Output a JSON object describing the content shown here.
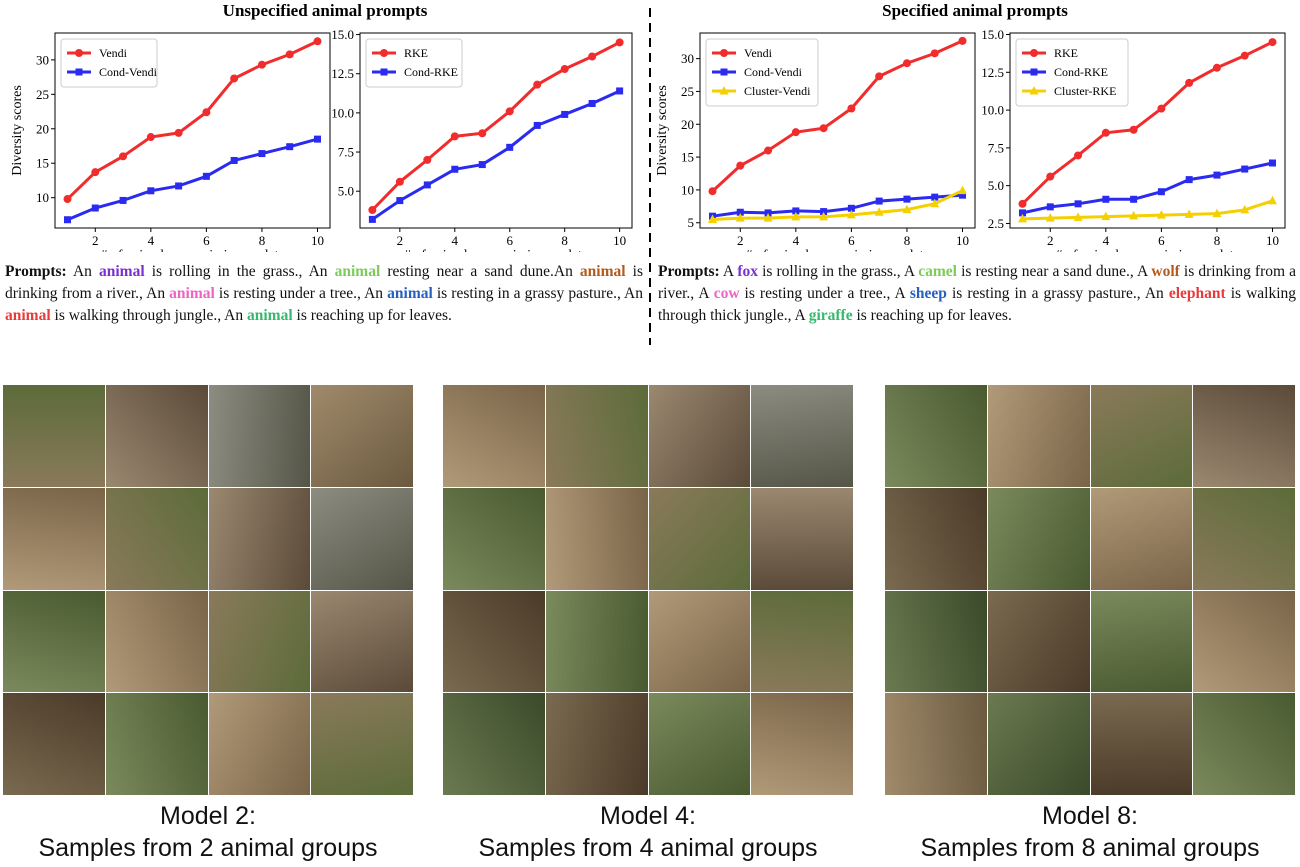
{
  "sections": [
    {
      "title": "Unspecified animal prompts"
    },
    {
      "title": "Specified animal prompts"
    }
  ],
  "chart_data": [
    {
      "type": "line",
      "x": [
        1,
        2,
        3,
        4,
        5,
        6,
        7,
        8,
        9,
        10
      ],
      "xlim": [
        0.55,
        10.45
      ],
      "xticks": [
        2,
        4,
        6,
        8,
        10
      ],
      "ylim": [
        5.6,
        33.9
      ],
      "yticks": [
        10,
        15,
        20,
        25,
        30
      ],
      "y_label": "Diversity scores",
      "x_label": "# of animal groups in image data",
      "series": [
        {
          "name": "Vendi",
          "color": "#f02c2c",
          "marker": "circle",
          "values": [
            9.8,
            13.7,
            16.0,
            18.8,
            19.4,
            22.4,
            27.3,
            29.3,
            30.8,
            32.7
          ]
        },
        {
          "name": "Cond-Vendi",
          "color": "#2a2af0",
          "marker": "square",
          "values": [
            6.8,
            8.5,
            9.6,
            11.0,
            11.7,
            13.1,
            15.4,
            16.4,
            17.4,
            18.5
          ]
        }
      ]
    },
    {
      "type": "line",
      "x": [
        1,
        2,
        3,
        4,
        5,
        6,
        7,
        8,
        9,
        10
      ],
      "xlim": [
        0.55,
        10.45
      ],
      "xticks": [
        2,
        4,
        6,
        8,
        10
      ],
      "ylim": [
        2.65,
        15.1
      ],
      "yticks": [
        {
          "value": 5,
          "label": "5.0"
        },
        {
          "value": 7.5,
          "label": "7.5"
        },
        {
          "value": 10,
          "label": "10.0"
        },
        {
          "value": 12.5,
          "label": "12.5"
        },
        {
          "value": 15,
          "label": "15.0"
        }
      ],
      "x_label": "# of animal groups in image data",
      "series": [
        {
          "name": "RKE",
          "color": "#f02c2c",
          "marker": "circle",
          "values": [
            3.8,
            5.6,
            7.0,
            8.5,
            8.7,
            10.1,
            11.8,
            12.8,
            13.6,
            14.5
          ]
        },
        {
          "name": "Cond-RKE",
          "color": "#2a2af0",
          "marker": "square",
          "values": [
            3.2,
            4.4,
            5.4,
            6.4,
            6.7,
            7.8,
            9.2,
            9.9,
            10.6,
            11.4
          ]
        }
      ]
    },
    {
      "type": "line",
      "x": [
        1,
        2,
        3,
        4,
        5,
        6,
        7,
        8,
        9,
        10
      ],
      "xlim": [
        0.55,
        10.45
      ],
      "xticks": [
        2,
        4,
        6,
        8,
        10
      ],
      "ylim": [
        4.2,
        33.9
      ],
      "yticks": [
        5,
        10,
        15,
        20,
        25,
        30
      ],
      "y_label": "Diversity scores",
      "x_label": "# of animal groups in image data",
      "series": [
        {
          "name": "Vendi",
          "color": "#f02c2c",
          "marker": "circle",
          "values": [
            9.8,
            13.7,
            16.0,
            18.8,
            19.4,
            22.4,
            27.3,
            29.3,
            30.8,
            32.7
          ]
        },
        {
          "name": "Cond-Vendi",
          "color": "#2a2af0",
          "marker": "square",
          "values": [
            6.0,
            6.6,
            6.5,
            6.8,
            6.7,
            7.2,
            8.3,
            8.6,
            8.9,
            9.2
          ]
        },
        {
          "name": "Cluster-Vendi",
          "color": "#f5d000",
          "marker": "triangle",
          "values": [
            5.5,
            5.7,
            5.7,
            5.9,
            5.9,
            6.2,
            6.6,
            7.0,
            7.9,
            9.9
          ]
        }
      ]
    },
    {
      "type": "line",
      "x": [
        1,
        2,
        3,
        4,
        5,
        6,
        7,
        8,
        9,
        10
      ],
      "xlim": [
        0.55,
        10.45
      ],
      "xticks": [
        2,
        4,
        6,
        8,
        10
      ],
      "ylim": [
        2.2,
        15.1
      ],
      "yticks": [
        {
          "value": 2.5,
          "label": "2.5"
        },
        {
          "value": 5,
          "label": "5.0"
        },
        {
          "value": 7.5,
          "label": "7.5"
        },
        {
          "value": 10,
          "label": "10.0"
        },
        {
          "value": 12.5,
          "label": "12.5"
        },
        {
          "value": 15,
          "label": "15.0"
        }
      ],
      "x_label": "# of animal groups in image data",
      "series": [
        {
          "name": "RKE",
          "color": "#f02c2c",
          "marker": "circle",
          "values": [
            3.8,
            5.6,
            7.0,
            8.5,
            8.7,
            10.1,
            11.8,
            12.8,
            13.6,
            14.5
          ]
        },
        {
          "name": "Cond-RKE",
          "color": "#2a2af0",
          "marker": "square",
          "values": [
            3.2,
            3.6,
            3.8,
            4.1,
            4.1,
            4.6,
            5.4,
            5.7,
            6.1,
            6.5
          ]
        },
        {
          "name": "Cluster-RKE",
          "color": "#f5d000",
          "marker": "triangle",
          "values": [
            2.8,
            2.85,
            2.9,
            2.95,
            3.0,
            3.05,
            3.1,
            3.15,
            3.4,
            4.0
          ]
        }
      ]
    }
  ],
  "prompts": [
    {
      "segments": [
        {
          "text": "Prompts:",
          "bold": true
        },
        {
          "text": " An "
        },
        {
          "text": "animal",
          "color": "#7a30d0"
        },
        {
          "text": " is rolling in the grass., An "
        },
        {
          "text": "animal",
          "color": "#7ccc58"
        },
        {
          "text": " resting near a sand dune.An "
        },
        {
          "text": "animal",
          "color": "#b45a1c"
        },
        {
          "text": " is drinking from a river., An "
        },
        {
          "text": "animal",
          "color": "#f062c4"
        },
        {
          "text": " is resting under a tree., An "
        },
        {
          "text": "animal",
          "color": "#2660c0"
        },
        {
          "text": " is resting in a grassy pasture., An "
        },
        {
          "text": "animal",
          "color": "#e83a3a"
        },
        {
          "text": " is walking through jungle., An "
        },
        {
          "text": "animal",
          "color": "#36b86e"
        },
        {
          "text": " is reaching up for leaves."
        }
      ]
    },
    {
      "segments": [
        {
          "text": "Prompts:",
          "bold": true
        },
        {
          "text": " A "
        },
        {
          "text": "fox",
          "color": "#7a30d0"
        },
        {
          "text": " is rolling in the grass., A "
        },
        {
          "text": "camel",
          "color": "#7ccc58"
        },
        {
          "text": " is resting near a sand dune., A "
        },
        {
          "text": "wolf",
          "color": "#b45a1c"
        },
        {
          "text": " is drinking from a river., A "
        },
        {
          "text": "cow",
          "color": "#f062c4"
        },
        {
          "text": " is resting under a tree., A "
        },
        {
          "text": "sheep",
          "color": "#2660c0"
        },
        {
          "text": " is resting in a grassy pasture., An "
        },
        {
          "text": "elephant",
          "color": "#e83a3a"
        },
        {
          "text": " is walking through thick jungle., A "
        },
        {
          "text": "giraffe",
          "color": "#36b86e"
        },
        {
          "text": " is reaching up for leaves."
        }
      ]
    }
  ],
  "grids": [
    {
      "caption": "Model 2:",
      "subcaption": "Samples from 2 animal groups"
    },
    {
      "caption": "Model 4:",
      "subcaption": "Samples from 4 animal groups"
    },
    {
      "caption": "Model 8:",
      "subcaption": "Samples from 8 animal groups"
    }
  ]
}
